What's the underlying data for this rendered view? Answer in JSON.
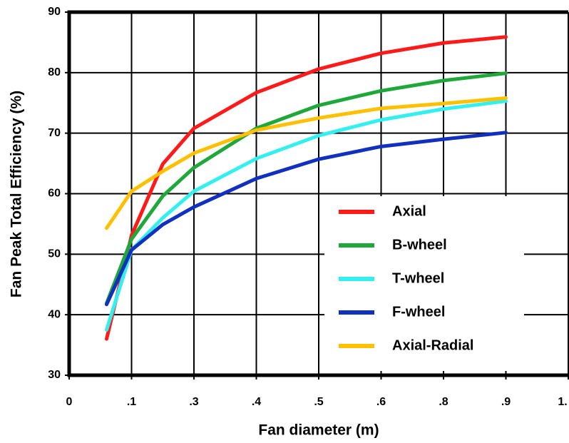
{
  "chart_data": {
    "type": "line",
    "x_label": "Fan diameter (m)",
    "y_label": "Fan Peak Total Efficiency (%)",
    "x": [
      0.06,
      0.1,
      0.2,
      0.3,
      0.4,
      0.5,
      0.6,
      0.8,
      0.9
    ],
    "series": [
      {
        "name": "Axial",
        "color": "#ff1a1a",
        "values": [
          36,
          53.1,
          64.9,
          70.8,
          76.7,
          80.6,
          83.2,
          84.9,
          85.9
        ]
      },
      {
        "name": "B-wheel",
        "color": "#1fa83a",
        "values": [
          41.9,
          52.5,
          59.6,
          64.3,
          70.8,
          74.6,
          77.0,
          78.7,
          79.9
        ]
      },
      {
        "name": "T-wheel",
        "color": "#33f0f0",
        "values": [
          37.5,
          50.7,
          56.0,
          60.4,
          65.8,
          69.6,
          72.2,
          74.0,
          75.3
        ]
      },
      {
        "name": "F-wheel",
        "color": "#1030c0",
        "values": [
          41.7,
          50.7,
          54.9,
          57.8,
          62.5,
          65.7,
          67.8,
          69.0,
          70.1
        ]
      },
      {
        "name": "Axial-Radial",
        "color": "#ffc000",
        "values": [
          54.3,
          60.4,
          63.7,
          66.7,
          70.5,
          72.5,
          74.1,
          74.9,
          75.8
        ]
      }
    ],
    "xlim": [
      0,
      1
    ],
    "xticks": [
      0,
      {
        "value": 0.1,
        "label": ".1"
      },
      {
        "value": 0.3,
        "label": ".3"
      },
      {
        "value": 0.4,
        "label": ".4"
      },
      {
        "value": 0.5,
        "label": ".5"
      },
      {
        "value": 0.6,
        "label": ".6"
      },
      {
        "value": 0.8,
        "label": ".8"
      },
      {
        "value": 0.9,
        "label": ".9"
      },
      {
        "value": 1,
        "label": "1."
      }
    ],
    "ylim": [
      30,
      90
    ],
    "yticks": [
      30,
      40,
      50,
      60,
      70,
      80,
      90
    ],
    "grid": true,
    "legend": "lower right"
  }
}
